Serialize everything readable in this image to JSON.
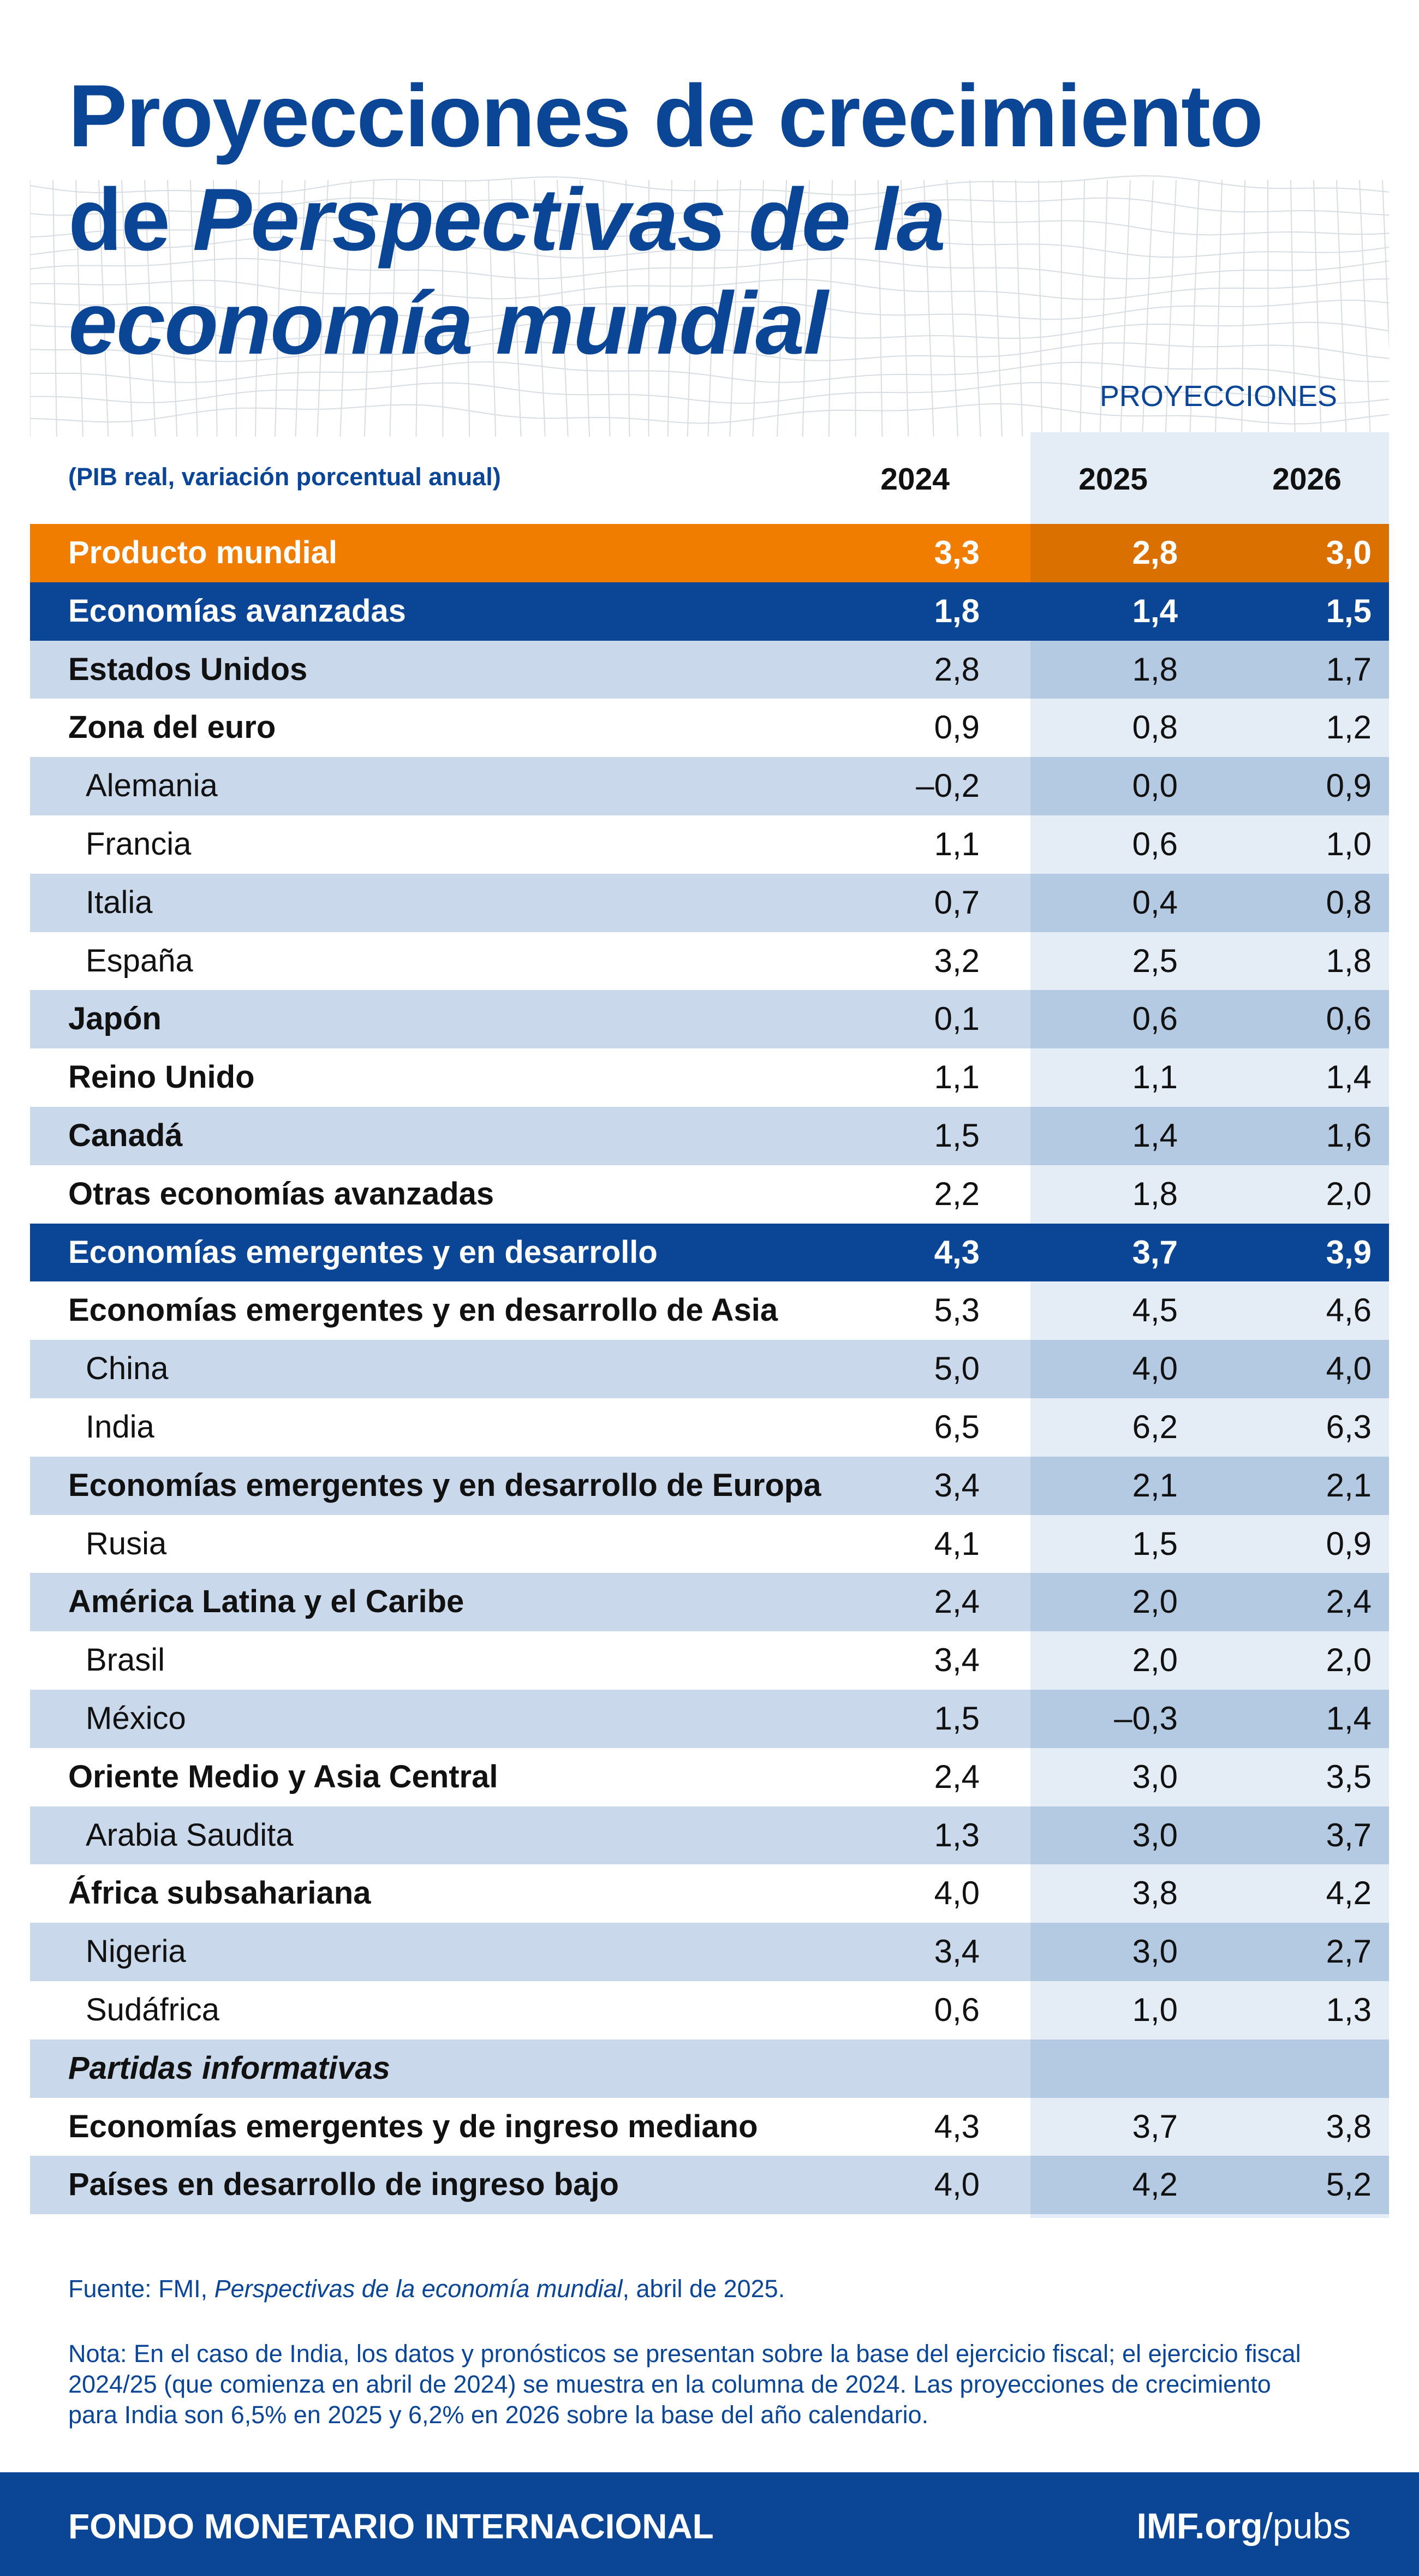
{
  "title_lines": [
    {
      "normal": "Proyecciones de crecimiento",
      "italic": ""
    },
    {
      "normal": "de ",
      "italic": "Perspectivas de la"
    },
    {
      "normal": "",
      "italic": "economía mundial"
    }
  ],
  "projections_label": "PROYECCIONES",
  "subtitle": "(PIB real, variación porcentual anual)",
  "colors": {
    "brand_blue": "#0b4596",
    "world_orange": "#f07d00",
    "row_shade": "#c9d8ea",
    "proj_shade": "#b4c9e2"
  },
  "chart_data": {
    "type": "table",
    "columns": [
      "2024",
      "2025",
      "2026"
    ],
    "rows": [
      {
        "label": "Producto mundial",
        "values": [
          "3,3",
          "2,8",
          "3,0"
        ],
        "style": "world"
      },
      {
        "label": "Economías avanzadas",
        "values": [
          "1,8",
          "1,4",
          "1,5"
        ],
        "style": "group"
      },
      {
        "label": "Estados Unidos",
        "values": [
          "2,8",
          "1,8",
          "1,7"
        ],
        "style": "bold"
      },
      {
        "label": "Zona del euro",
        "values": [
          "0,9",
          "0,8",
          "1,2"
        ],
        "style": "bold"
      },
      {
        "label": "Alemania",
        "values": [
          "–0,2",
          "0,0",
          "0,9"
        ],
        "style": "sub"
      },
      {
        "label": "Francia",
        "values": [
          "1,1",
          "0,6",
          "1,0"
        ],
        "style": "sub"
      },
      {
        "label": "Italia",
        "values": [
          "0,7",
          "0,4",
          "0,8"
        ],
        "style": "sub"
      },
      {
        "label": "España",
        "values": [
          "3,2",
          "2,5",
          "1,8"
        ],
        "style": "sub"
      },
      {
        "label": "Japón",
        "values": [
          "0,1",
          "0,6",
          "0,6"
        ],
        "style": "bold"
      },
      {
        "label": "Reino Unido",
        "values": [
          "1,1",
          "1,1",
          "1,4"
        ],
        "style": "bold"
      },
      {
        "label": "Canadá",
        "values": [
          "1,5",
          "1,4",
          "1,6"
        ],
        "style": "bold"
      },
      {
        "label": "Otras economías avanzadas",
        "values": [
          "2,2",
          "1,8",
          "2,0"
        ],
        "style": "bold"
      },
      {
        "label": "Economías emergentes y en desarrollo",
        "values": [
          "4,3",
          "3,7",
          "3,9"
        ],
        "style": "group"
      },
      {
        "label": "Economías emergentes y en desarrollo de Asia",
        "values": [
          "5,3",
          "4,5",
          "4,6"
        ],
        "style": "bold"
      },
      {
        "label": "China",
        "values": [
          "5,0",
          "4,0",
          "4,0"
        ],
        "style": "sub"
      },
      {
        "label": "India",
        "values": [
          "6,5",
          "6,2",
          "6,3"
        ],
        "style": "sub"
      },
      {
        "label": "Economías emergentes y en desarrollo de Europa",
        "values": [
          "3,4",
          "2,1",
          "2,1"
        ],
        "style": "bold"
      },
      {
        "label": "Rusia",
        "values": [
          "4,1",
          "1,5",
          "0,9"
        ],
        "style": "sub"
      },
      {
        "label": "América Latina y el Caribe",
        "values": [
          "2,4",
          "2,0",
          "2,4"
        ],
        "style": "bold"
      },
      {
        "label": "Brasil",
        "values": [
          "3,4",
          "2,0",
          "2,0"
        ],
        "style": "sub"
      },
      {
        "label": "México",
        "values": [
          "1,5",
          "–0,3",
          "1,4"
        ],
        "style": "sub"
      },
      {
        "label": "Oriente Medio y Asia Central",
        "values": [
          "2,4",
          "3,0",
          "3,5"
        ],
        "style": "bold"
      },
      {
        "label": "Arabia Saudita",
        "values": [
          "1,3",
          "3,0",
          "3,7"
        ],
        "style": "sub"
      },
      {
        "label": "África subsahariana",
        "values": [
          "4,0",
          "3,8",
          "4,2"
        ],
        "style": "bold"
      },
      {
        "label": "Nigeria",
        "values": [
          "3,4",
          "3,0",
          "2,7"
        ],
        "style": "sub"
      },
      {
        "label": "Sudáfrica",
        "values": [
          "0,6",
          "1,0",
          "1,3"
        ],
        "style": "sub"
      },
      {
        "label": "Partidas informativas",
        "values": [
          "",
          "",
          ""
        ],
        "style": "italic"
      },
      {
        "label": "Economías emergentes y de ingreso mediano",
        "values": [
          "4,3",
          "3,7",
          "3,8"
        ],
        "style": "bold"
      },
      {
        "label": "Países en desarrollo de ingreso bajo",
        "values": [
          "4,0",
          "4,2",
          "5,2"
        ],
        "style": "bold"
      }
    ]
  },
  "source": {
    "prefix": "Fuente: FMI, ",
    "italic": "Perspectivas de la economía mundial",
    "suffix": ", abril de 2025."
  },
  "note": "Nota: En el caso de India, los datos y pronósticos se presentan sobre la base del ejercicio fiscal; el ejercicio fiscal 2024/25 (que comienza en abril de 2024) se muestra en la columna de 2024. Las proyecciones de crecimiento para India son 6,5% en 2025 y 6,2% en 2026 sobre la base del año calendario.",
  "footer": {
    "org": "FONDO MONETARIO INTERNACIONAL",
    "site_bold": "IMF.org",
    "site_rest": "/pubs"
  }
}
